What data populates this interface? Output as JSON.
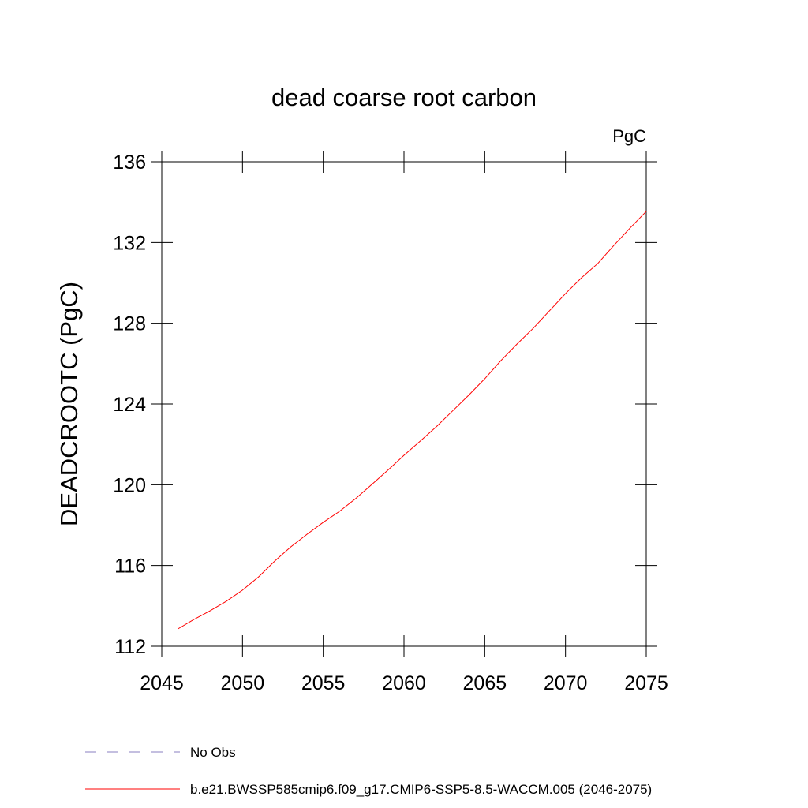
{
  "chart_data": {
    "type": "line",
    "title": "dead coarse root carbon",
    "units": "PgC",
    "y_label": "DEADCROOTC  (PgC)",
    "x": [
      2046,
      2047,
      2048,
      2049,
      2050,
      2051,
      2052,
      2053,
      2054,
      2055,
      2056,
      2057,
      2058,
      2059,
      2060,
      2061,
      2062,
      2063,
      2064,
      2065,
      2066,
      2067,
      2068,
      2069,
      2070,
      2071,
      2072,
      2073,
      2074,
      2075
    ],
    "series": [
      {
        "name": "b.e21.BWSSP585cmip6.f09_g17.CMIP6-SSP5-8.5-WACCM.005 (2046-2075)",
        "color": "#ff0000",
        "values": [
          112.86,
          113.33,
          113.76,
          114.23,
          114.78,
          115.44,
          116.22,
          116.93,
          117.55,
          118.14,
          118.68,
          119.31,
          120.01,
          120.72,
          121.46,
          122.16,
          122.87,
          123.65,
          124.43,
          125.25,
          126.15,
          126.97,
          127.75,
          128.61,
          129.47,
          130.26,
          130.96,
          131.86,
          132.72,
          133.54
        ]
      }
    ],
    "obs_legend": {
      "name": "No Obs",
      "color": "#8a7fc0",
      "dashed": true
    },
    "xlim": [
      2045,
      2075
    ],
    "xticks": [
      2045,
      2050,
      2055,
      2060,
      2065,
      2070,
      2075
    ],
    "ylim": [
      112,
      136
    ],
    "yticks": [
      112,
      116,
      120,
      124,
      128,
      132,
      136
    ]
  }
}
